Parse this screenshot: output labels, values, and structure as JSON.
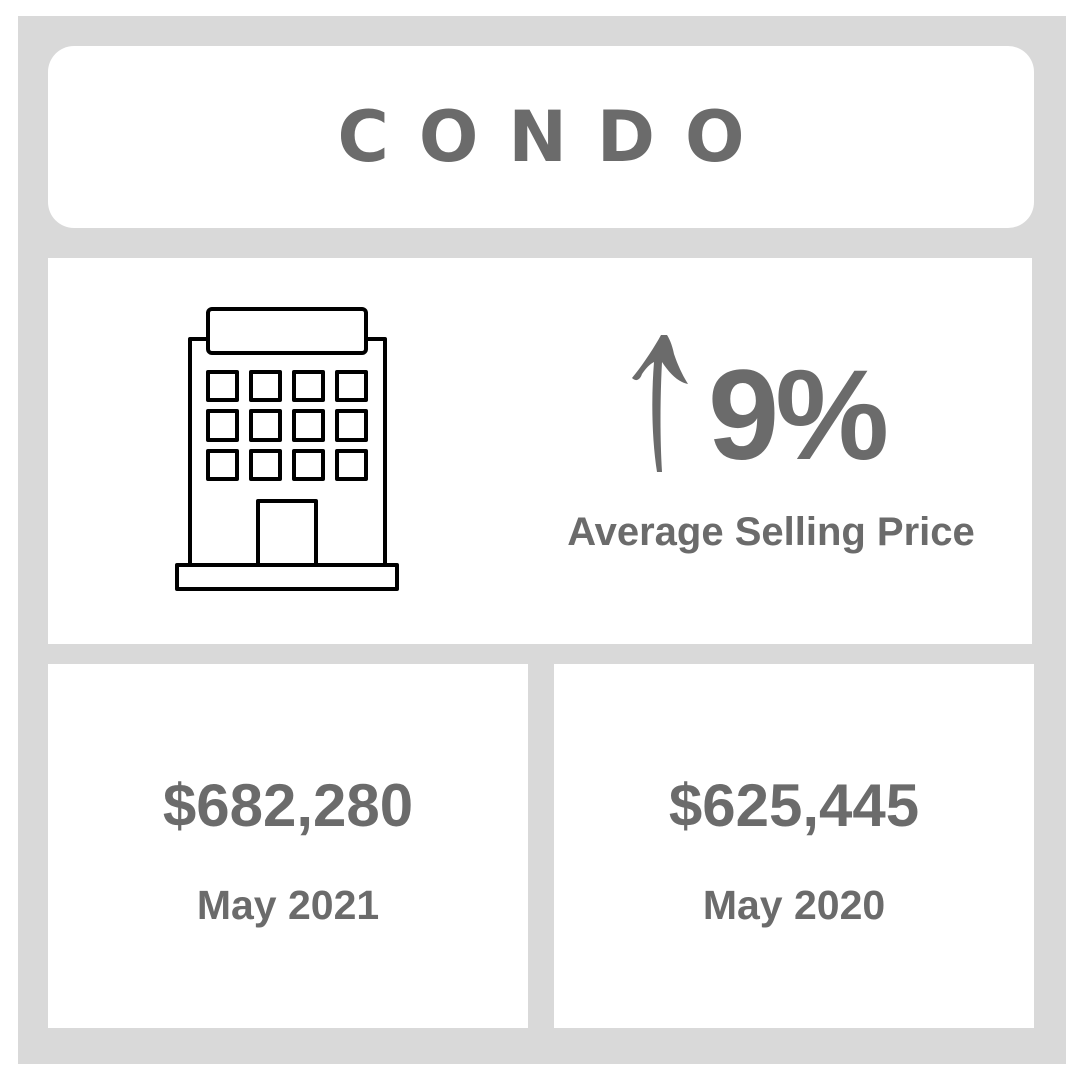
{
  "header": {
    "title": "CONDO"
  },
  "summary": {
    "icon": "condo-building-icon",
    "trend_icon": "arrow-up-icon",
    "change_percent": "9%",
    "metric_label": "Average Selling Price"
  },
  "comparison": [
    {
      "price": "$682,280",
      "period": "May 2021"
    },
    {
      "price": "$625,445",
      "period": "May 2020"
    }
  ],
  "colors": {
    "background": "#d9d9d9",
    "card": "#ffffff",
    "text": "#6b6b6b",
    "icon_stroke": "#000000"
  }
}
